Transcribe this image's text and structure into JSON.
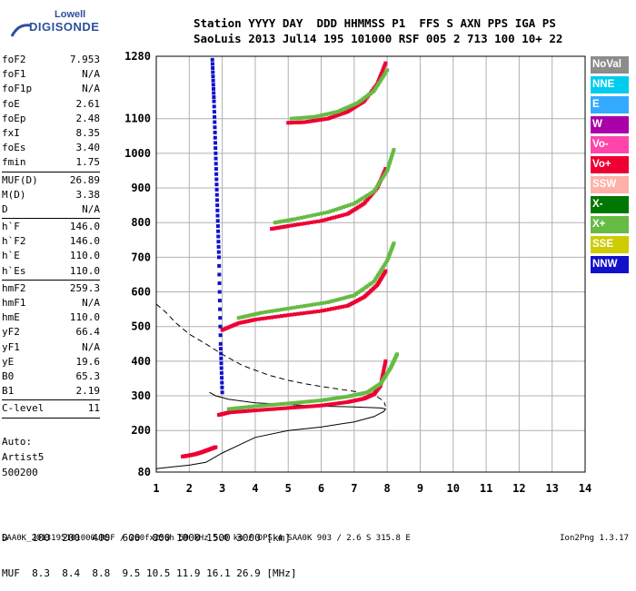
{
  "logo": {
    "line1": "Lowell",
    "line2": "DIGISONDE"
  },
  "header": {
    "labels": "Station YYYY DAY  DDD HHMMSS P1  FFS S AXN PPS IGA PS",
    "values": "SaoLuis 2013 Jul14 195 101000 RSF 005 2 713 100 10+ 22"
  },
  "params": [
    {
      "name": "foF2",
      "value": "7.953"
    },
    {
      "name": "foF1",
      "value": "N/A"
    },
    {
      "name": "foF1p",
      "value": "N/A"
    },
    {
      "name": "foE",
      "value": "2.61"
    },
    {
      "name": "foEp",
      "value": "2.48"
    },
    {
      "name": "fxI",
      "value": "8.35"
    },
    {
      "name": "foEs",
      "value": "3.40"
    },
    {
      "name": "fmin",
      "value": "1.75"
    },
    {
      "name": "MUF(D)",
      "value": "26.89",
      "sep": true
    },
    {
      "name": "M(D)",
      "value": "3.38"
    },
    {
      "name": "D",
      "value": "N/A"
    },
    {
      "name": "h`F",
      "value": "146.0",
      "sep": true
    },
    {
      "name": "h`F2",
      "value": "146.0"
    },
    {
      "name": "h`E",
      "value": "110.0"
    },
    {
      "name": "h`Es",
      "value": "110.0"
    },
    {
      "name": "hmF2",
      "value": "259.3",
      "sep": true
    },
    {
      "name": "hmF1",
      "value": "N/A"
    },
    {
      "name": "hmE",
      "value": "110.0"
    },
    {
      "name": "yF2",
      "value": "66.4"
    },
    {
      "name": "yF1",
      "value": "N/A"
    },
    {
      "name": "yE",
      "value": "19.6"
    },
    {
      "name": "B0",
      "value": "65.3"
    },
    {
      "name": "B1",
      "value": "2.19"
    },
    {
      "name": "C-level",
      "value": "11",
      "sep": true
    }
  ],
  "auto": {
    "line1": "Auto:",
    "line2": "Artist5",
    "line3": "500200"
  },
  "legend": [
    {
      "label": "NoVal",
      "color": "#8c8c8c"
    },
    {
      "label": "NNE",
      "color": "#00ccee"
    },
    {
      "label": "E",
      "color": "#33aaff"
    },
    {
      "label": "W",
      "color": "#aa00aa"
    },
    {
      "label": "Vo-",
      "color": "#ff44aa"
    },
    {
      "label": "Vo+",
      "color": "#ee0033"
    },
    {
      "label": "SSW",
      "color": "#ffb0a8"
    },
    {
      "label": "X-",
      "color": "#007700"
    },
    {
      "label": "X+",
      "color": "#66bb44"
    },
    {
      "label": "SSE",
      "color": "#cccc00"
    },
    {
      "label": "NNW",
      "color": "#1111cc"
    }
  ],
  "dtable": {
    "d_row": "D    100  200  400  600  800 1000 1500 3000 [km]",
    "muf_row": "MUF  8.3  8.4  8.8  9.5 10.5 11.9 16.1 26.9 [MHz]"
  },
  "footer": {
    "left": "SAA0K_2013195101000.RSF / 260fx256h 50 kHz 5.0 km / DPS-4 SAA0K 903 / 2.6 S 315.8 E",
    "right": "Ion2Png 1.3.17"
  },
  "chart_data": {
    "type": "scatter",
    "title": "",
    "xlabel": "",
    "ylabel": "",
    "xlim": [
      1,
      14
    ],
    "ylim": [
      80,
      1280
    ],
    "x_ticks": [
      1,
      2,
      3,
      4,
      5,
      6,
      7,
      8,
      9,
      10,
      11,
      12,
      13,
      14
    ],
    "y_ticks": [
      80,
      200,
      300,
      400,
      500,
      600,
      700,
      800,
      900,
      1000,
      1100,
      1280
    ],
    "grid": true,
    "series": [
      {
        "name": "Vo+",
        "color": "#ee0033",
        "x": [
          2.9,
          3.2,
          4.0,
          5.0,
          6.0,
          6.8,
          7.3,
          7.6,
          7.8,
          7.95
        ],
        "y": [
          245,
          252,
          258,
          265,
          272,
          282,
          292,
          305,
          330,
          400
        ]
      },
      {
        "name": "X+",
        "color": "#66bb44",
        "x": [
          3.2,
          4.0,
          5.0,
          6.0,
          6.8,
          7.4,
          7.8,
          8.1,
          8.3
        ],
        "y": [
          262,
          270,
          278,
          287,
          298,
          310,
          335,
          380,
          420
        ]
      },
      {
        "name": "Vo+",
        "color": "#ee0033",
        "x": [
          3.0,
          3.5,
          4.0,
          5.0,
          6.0,
          6.8,
          7.3,
          7.7,
          7.95
        ],
        "y": [
          490,
          510,
          520,
          533,
          545,
          560,
          585,
          620,
          660
        ]
      },
      {
        "name": "X+",
        "color": "#66bb44",
        "x": [
          3.5,
          4.2,
          5.2,
          6.2,
          7.0,
          7.6,
          8.0,
          8.2
        ],
        "y": [
          525,
          540,
          555,
          570,
          590,
          630,
          690,
          740
        ]
      },
      {
        "name": "Vo+",
        "color": "#ee0033",
        "x": [
          4.5,
          5.0,
          6.0,
          6.8,
          7.3,
          7.7,
          7.95
        ],
        "y": [
          782,
          790,
          805,
          825,
          855,
          900,
          955
        ]
      },
      {
        "name": "X+",
        "color": "#66bb44",
        "x": [
          4.6,
          5.2,
          6.2,
          7.0,
          7.6,
          8.0,
          8.2
        ],
        "y": [
          800,
          810,
          830,
          855,
          890,
          950,
          1010
        ]
      },
      {
        "name": "Vo+",
        "color": "#ee0033",
        "x": [
          5.0,
          5.5,
          6.2,
          6.8,
          7.3,
          7.7,
          7.95
        ],
        "y": [
          1088,
          1090,
          1100,
          1120,
          1150,
          1200,
          1260
        ]
      },
      {
        "name": "X+",
        "color": "#66bb44",
        "x": [
          5.1,
          5.8,
          6.5,
          7.1,
          7.6,
          8.0
        ],
        "y": [
          1100,
          1105,
          1120,
          1145,
          1180,
          1240
        ]
      },
      {
        "name": "NNW",
        "color": "#1111cc",
        "x": [
          2.7,
          2.75,
          2.8,
          2.85,
          2.9,
          2.95,
          3.0
        ],
        "y": [
          1270,
          1150,
          1000,
          850,
          700,
          450,
          310
        ]
      },
      {
        "name": "Vo+",
        "color": "#ee0033",
        "x": [
          1.8,
          2.0,
          2.2,
          2.4,
          2.6,
          2.8
        ],
        "y": [
          125,
          128,
          132,
          138,
          145,
          152
        ]
      }
    ],
    "profile_solid": {
      "x": [
        1.0,
        1.5,
        2.0,
        2.5,
        3.0,
        4.0,
        5.0,
        6.0,
        7.0,
        7.6,
        7.9,
        7.95,
        7.8,
        7.0,
        6.0,
        5.0,
        4.0,
        3.2,
        2.8,
        2.61
      ],
      "y": [
        90,
        95,
        100,
        108,
        135,
        180,
        200,
        210,
        225,
        240,
        255,
        262,
        265,
        268,
        270,
        275,
        280,
        290,
        300,
        310
      ]
    },
    "profile_dashed": {
      "x": [
        1.0,
        1.3,
        1.6,
        2.0,
        2.5,
        3.0,
        3.6,
        4.4,
        5.0,
        5.5,
        6.0,
        6.5,
        7.0,
        7.4,
        7.7,
        7.9,
        7.95
      ],
      "y": [
        565,
        540,
        510,
        478,
        450,
        420,
        388,
        360,
        345,
        335,
        327,
        320,
        313,
        305,
        297,
        285,
        270
      ]
    }
  }
}
